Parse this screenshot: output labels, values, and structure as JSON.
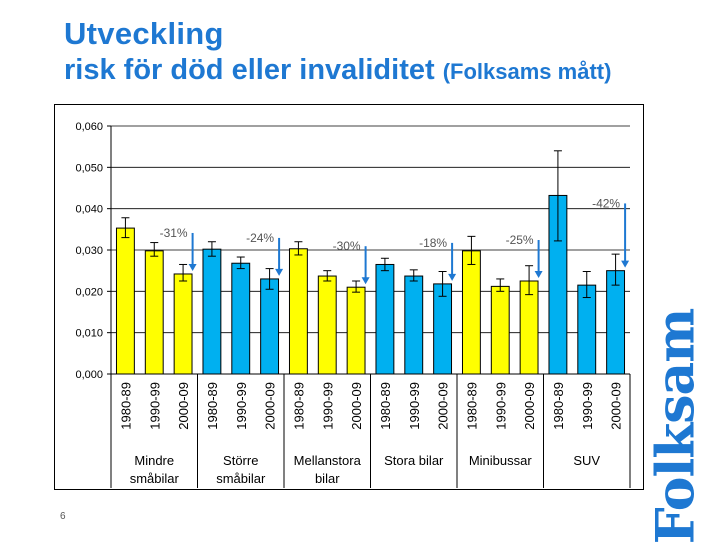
{
  "title": {
    "line1": "Utveckling",
    "line2": "risk för död eller invaliditet",
    "line2_suffix": "(Folksams mått)"
  },
  "slide_number": "6",
  "logo_text": "Folksam",
  "colors": {
    "title": "#1e78d2",
    "yellow_bar": "#ffff00",
    "blue_bar": "#00b0f0",
    "arrow": "#1e78d2",
    "pct_label": "#555555"
  },
  "chart_data": {
    "type": "bar",
    "title": "",
    "xlabel": "",
    "ylabel": "",
    "ylim": [
      0,
      0.06
    ],
    "yticks": [
      0,
      0.01,
      0.02,
      0.03,
      0.04,
      0.05,
      0.06
    ],
    "ytick_labels": [
      "0,000",
      "0,010",
      "0,020",
      "0,030",
      "0,040",
      "0,050",
      "0,060"
    ],
    "grid": true,
    "periods": [
      "1980-89",
      "1990-99",
      "2000-09"
    ],
    "groups": [
      {
        "label_lines": [
          "Mindre",
          "småbilar"
        ],
        "color": "yellow",
        "change": "-31%",
        "bars": [
          {
            "value": 0.0353,
            "err_low": 0.033,
            "err_high": 0.0378
          },
          {
            "value": 0.0298,
            "err_low": 0.0285,
            "err_high": 0.0318
          },
          {
            "value": 0.0242,
            "err_low": 0.0225,
            "err_high": 0.0265
          }
        ]
      },
      {
        "label_lines": [
          "Större",
          "småbilar"
        ],
        "color": "blue",
        "change": "-24%",
        "bars": [
          {
            "value": 0.0302,
            "err_low": 0.0285,
            "err_high": 0.032
          },
          {
            "value": 0.0268,
            "err_low": 0.0255,
            "err_high": 0.0283
          },
          {
            "value": 0.023,
            "err_low": 0.0205,
            "err_high": 0.0255
          }
        ]
      },
      {
        "label_lines": [
          "Mellanstora",
          "bilar"
        ],
        "color": "yellow",
        "change": "-30%",
        "bars": [
          {
            "value": 0.0303,
            "err_low": 0.0288,
            "err_high": 0.032
          },
          {
            "value": 0.0237,
            "err_low": 0.0225,
            "err_high": 0.025
          },
          {
            "value": 0.021,
            "err_low": 0.0198,
            "err_high": 0.0225
          }
        ]
      },
      {
        "label_lines": [
          "Stora bilar"
        ],
        "color": "blue",
        "change": "-18%",
        "bars": [
          {
            "value": 0.0265,
            "err_low": 0.025,
            "err_high": 0.028
          },
          {
            "value": 0.0237,
            "err_low": 0.0225,
            "err_high": 0.0252
          },
          {
            "value": 0.0218,
            "err_low": 0.0188,
            "err_high": 0.0248
          }
        ]
      },
      {
        "label_lines": [
          "Minibussar"
        ],
        "color": "yellow",
        "change": "-25%",
        "bars": [
          {
            "value": 0.0298,
            "err_low": 0.0265,
            "err_high": 0.0333
          },
          {
            "value": 0.0212,
            "err_low": 0.02,
            "err_high": 0.023
          },
          {
            "value": 0.0225,
            "err_low": 0.0192,
            "err_high": 0.0262
          }
        ]
      },
      {
        "label_lines": [
          "SUV"
        ],
        "color": "blue",
        "change": "-42%",
        "bars": [
          {
            "value": 0.0432,
            "err_low": 0.0322,
            "err_high": 0.054
          },
          {
            "value": 0.0215,
            "err_low": 0.0185,
            "err_high": 0.0248
          },
          {
            "value": 0.025,
            "err_low": 0.0215,
            "err_high": 0.029
          }
        ]
      }
    ]
  }
}
